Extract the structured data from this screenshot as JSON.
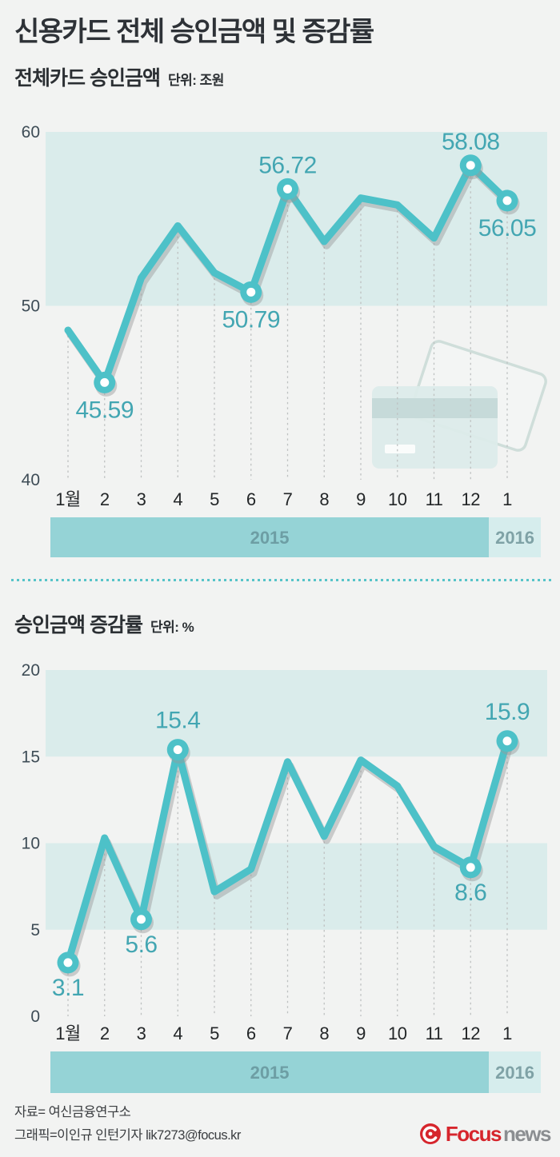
{
  "page": {
    "title": "신용카드 전체 승인금액 및 증감률"
  },
  "chart_data": [
    {
      "type": "line",
      "title": "전체카드 승인금액",
      "unit_label": "단위: 조원",
      "categories": [
        "1월",
        "2",
        "3",
        "4",
        "5",
        "6",
        "7",
        "8",
        "9",
        "10",
        "11",
        "12",
        "1"
      ],
      "category_years": [
        {
          "label": "2015",
          "span_months": 12
        },
        {
          "label": "2016",
          "span_months": 1
        }
      ],
      "values": [
        48.6,
        45.59,
        51.6,
        54.6,
        51.9,
        50.79,
        56.72,
        53.7,
        56.2,
        55.8,
        53.9,
        58.08,
        56.05
      ],
      "labeled_points": [
        {
          "index": 1,
          "text": "45.59",
          "position": "below"
        },
        {
          "index": 5,
          "text": "50.79",
          "position": "below"
        },
        {
          "index": 6,
          "text": "56.72",
          "position": "above"
        },
        {
          "index": 11,
          "text": "58.08",
          "position": "above"
        },
        {
          "index": 12,
          "text": "56.05",
          "position": "below"
        }
      ],
      "y_ticks": [
        60,
        50,
        40
      ],
      "ylim": [
        40,
        60
      ],
      "shaded_value_bands": [
        [
          50,
          60
        ]
      ],
      "grid": "vertical-dotted",
      "legend": "none"
    },
    {
      "type": "line",
      "title": "승인금액 증감률",
      "unit_label": "단위: %",
      "categories": [
        "1월",
        "2",
        "3",
        "4",
        "5",
        "6",
        "7",
        "8",
        "9",
        "10",
        "11",
        "12",
        "1"
      ],
      "category_years": [
        {
          "label": "2015",
          "span_months": 12
        },
        {
          "label": "2016",
          "span_months": 1
        }
      ],
      "values": [
        3.1,
        10.3,
        5.6,
        15.4,
        7.2,
        8.5,
        14.7,
        10.4,
        14.8,
        13.3,
        9.8,
        8.6,
        15.9
      ],
      "labeled_points": [
        {
          "index": 0,
          "text": "3.1",
          "position": "below"
        },
        {
          "index": 2,
          "text": "5.6",
          "position": "below"
        },
        {
          "index": 3,
          "text": "15.4",
          "position": "above"
        },
        {
          "index": 11,
          "text": "8.6",
          "position": "below"
        },
        {
          "index": 12,
          "text": "15.9",
          "position": "above"
        }
      ],
      "y_ticks": [
        20,
        15,
        10,
        5,
        0
      ],
      "ylim": [
        0,
        20
      ],
      "shaded_value_bands": [
        [
          15,
          20
        ],
        [
          5,
          10
        ]
      ],
      "grid": "vertical-dotted",
      "legend": "none"
    }
  ],
  "footer": {
    "source_label": "자료= 여신금융연구소",
    "credit_label": "그래픽=이인규 인턴기자 lik7273@focus.kr",
    "logo": {
      "brand_bold": "Focus",
      "brand_regular": "news"
    }
  },
  "colors": {
    "background": "#f2f3f2",
    "title_text": "#2e3237",
    "plot_band": "#daeceb",
    "line": "#4dc1c8",
    "line_shadow": "rgba(150,154,152,0.45)",
    "marker_inner": "#ffffff",
    "value_label": "#43a6b2",
    "y_axis_label": "#3e4c56",
    "x_axis_label": "#232628",
    "gridline": "#bec1c1",
    "year_band_2015": "#95d3d6",
    "year_band_2016": "#d6eded",
    "year_text_2015": "#6d9ea4",
    "year_text_2016": "#7fa2a6",
    "separator_dots": "#57c4c9",
    "footer_text": "#3a3d40",
    "logo_red": "#d6252c",
    "logo_gray": "#8b8e91"
  }
}
